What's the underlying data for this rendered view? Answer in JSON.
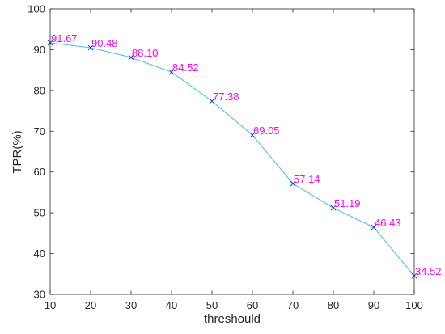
{
  "chart_data": {
    "type": "line",
    "title": "",
    "xlabel": "threshould",
    "ylabel": "TPR(%)",
    "xlim": [
      10,
      100
    ],
    "ylim": [
      30,
      100
    ],
    "xticks": [
      "10",
      "20",
      "30",
      "40",
      "50",
      "60",
      "70",
      "80",
      "90",
      "100"
    ],
    "yticks": [
      "30",
      "40",
      "50",
      "60",
      "70",
      "80",
      "90",
      "100"
    ],
    "grid": false,
    "legend": "none",
    "series": [
      {
        "x": [
          10,
          20,
          30,
          40,
          50,
          60,
          70,
          80,
          90,
          100
        ],
        "values": [
          91.67,
          90.48,
          88.1,
          84.52,
          77.38,
          69.05,
          57.14,
          51.19,
          46.43,
          34.52
        ],
        "labels": [
          "91.67",
          "90.48",
          "88.10",
          "84.52",
          "77.38",
          "69.05",
          "57.14",
          "51.19",
          "46.43",
          "34.52"
        ],
        "line_color": "#4DBEEE",
        "marker": "x",
        "marker_color": "#1F3FBF",
        "label_color": "#FF00FF"
      }
    ]
  }
}
